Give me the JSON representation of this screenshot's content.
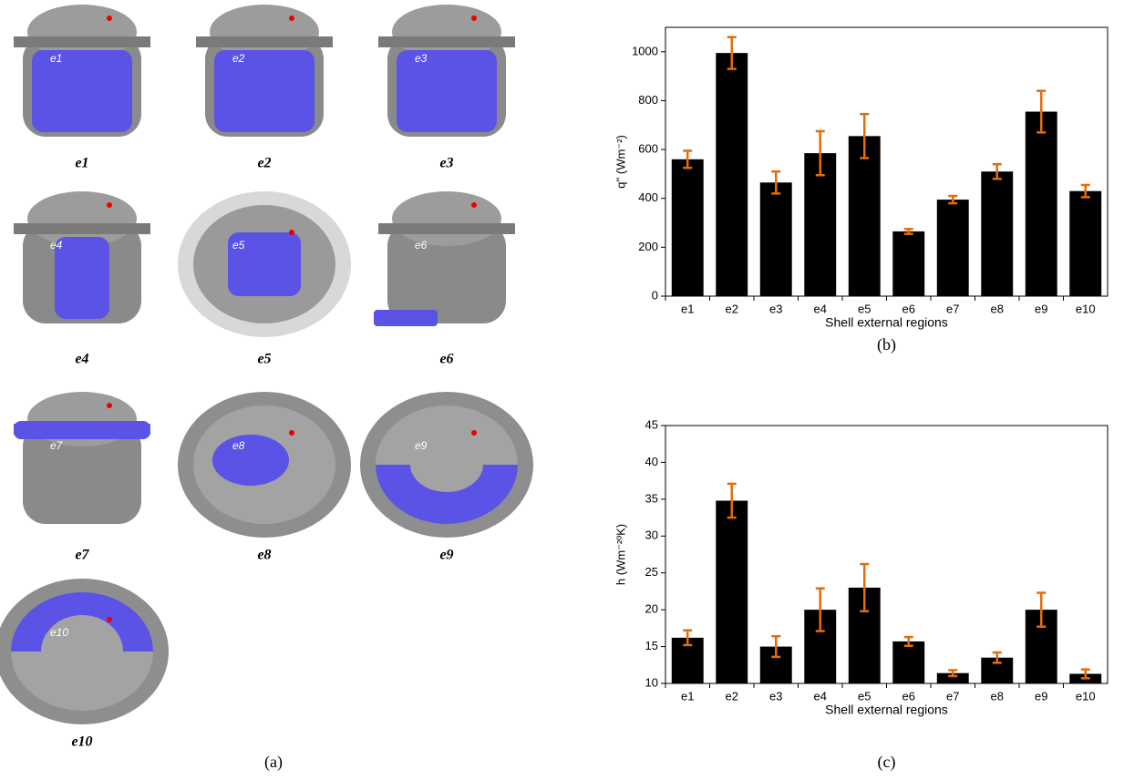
{
  "panel_a": {
    "caption": "(a)",
    "items": [
      {
        "caption": "e1",
        "region_label": "e1"
      },
      {
        "caption": "e2",
        "region_label": "e2"
      },
      {
        "caption": "e3",
        "region_label": "e3"
      },
      {
        "caption": "e4",
        "region_label": "e4"
      },
      {
        "caption": "e5",
        "region_label": "e5"
      },
      {
        "caption": "e6",
        "region_label": "e6"
      },
      {
        "caption": "e7",
        "region_label": "e7"
      },
      {
        "caption": "e8",
        "region_label": "e8"
      },
      {
        "caption": "e9",
        "region_label": "e9"
      },
      {
        "caption": "e10",
        "region_label": "e10"
      }
    ]
  },
  "chart_data": [
    {
      "type": "bar",
      "caption": "(b)",
      "xlabel": "Shell external regions",
      "ylabel": "q'' (Wm⁻²)",
      "categories": [
        "e1",
        "e2",
        "e3",
        "e4",
        "e5",
        "e6",
        "e7",
        "e8",
        "e9",
        "e10"
      ],
      "values": [
        560,
        995,
        465,
        585,
        655,
        265,
        395,
        510,
        755,
        430
      ],
      "errors": [
        35,
        65,
        45,
        90,
        90,
        10,
        15,
        30,
        85,
        25
      ],
      "color": "#000000",
      "error_color": "#e46c0a",
      "ylim": [
        0,
        1100
      ],
      "yticks": [
        0,
        200,
        400,
        600,
        800,
        1000
      ]
    },
    {
      "type": "bar",
      "caption": "(c)",
      "xlabel": "Shell external regions",
      "ylabel": "h (Wm⁻²ºK)",
      "categories": [
        "e1",
        "e2",
        "e3",
        "e4",
        "e5",
        "e6",
        "e7",
        "e8",
        "e9",
        "e10"
      ],
      "values": [
        16.2,
        34.8,
        15,
        20,
        23,
        15.7,
        11.4,
        13.5,
        20,
        11.3
      ],
      "errors": [
        1.0,
        2.3,
        1.4,
        2.9,
        3.2,
        0.6,
        0.4,
        0.7,
        2.3,
        0.6
      ],
      "color": "#000000",
      "error_color": "#e46c0a",
      "ylim": [
        10,
        45
      ],
      "yticks": [
        10,
        15,
        20,
        25,
        30,
        35,
        40,
        45
      ]
    }
  ]
}
